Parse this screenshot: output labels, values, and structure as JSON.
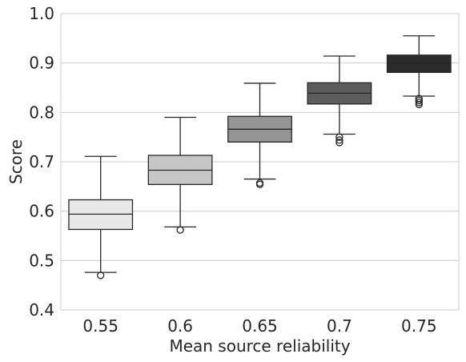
{
  "chart_data": {
    "type": "box",
    "title": "",
    "xlabel": "Mean source reliability",
    "ylabel": "Score",
    "ylim": [
      0.4,
      1.0
    ],
    "yticks": [
      "0.4",
      "0.5",
      "0.6",
      "0.7",
      "0.8",
      "0.9",
      "1.0"
    ],
    "grid": "horizontal",
    "categories": [
      "0.55",
      "0.6",
      "0.65",
      "0.7",
      "0.75"
    ],
    "boxes": [
      {
        "category": "0.55",
        "whisker_low": 0.476,
        "q1": 0.563,
        "median": 0.594,
        "q3": 0.623,
        "whisker_high": 0.711,
        "outliers": [
          0.47
        ],
        "color": "#e8e8e8"
      },
      {
        "category": "0.6",
        "whisker_low": 0.568,
        "q1": 0.654,
        "median": 0.683,
        "q3": 0.713,
        "whisker_high": 0.79,
        "outliers": [
          0.562
        ],
        "color": "#c6c6c6"
      },
      {
        "category": "0.65",
        "whisker_low": 0.665,
        "q1": 0.74,
        "median": 0.766,
        "q3": 0.792,
        "whisker_high": 0.859,
        "outliers": [
          0.657,
          0.654
        ],
        "color": "#959595"
      },
      {
        "category": "0.7",
        "whisker_low": 0.756,
        "q1": 0.817,
        "median": 0.839,
        "q3": 0.86,
        "whisker_high": 0.914,
        "outliers": [
          0.75,
          0.744,
          0.739
        ],
        "color": "#5d5d5d"
      },
      {
        "category": "0.75",
        "whisker_low": 0.833,
        "q1": 0.881,
        "median": 0.9,
        "q3": 0.916,
        "whisker_high": 0.955,
        "outliers": [
          0.828,
          0.824,
          0.82,
          0.816
        ],
        "color": "#2b2b2b"
      }
    ]
  }
}
